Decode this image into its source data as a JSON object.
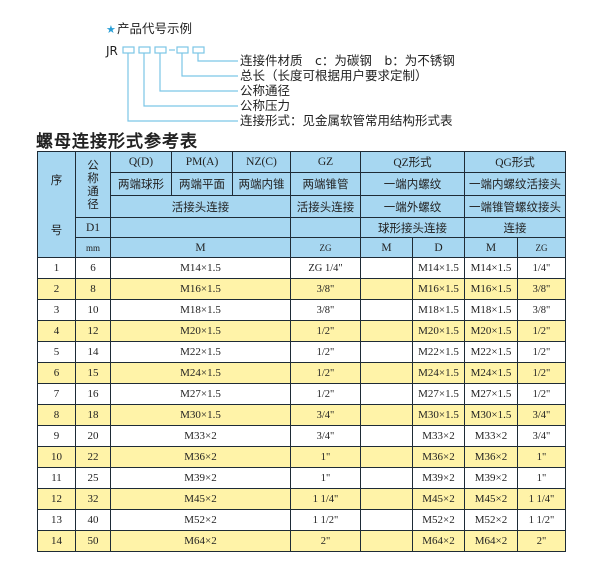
{
  "diagram": {
    "star_color": "#2a9fd6",
    "heading": "产品代号示例",
    "code_prefix": "JR",
    "labels": [
      "连接件材质　c：为碳钢　b：为不锈钢",
      "总长（长度可根据用户要求定制）",
      "公称通径",
      "公称压力",
      "连接形式：见金属软管常用结构形式表"
    ]
  },
  "table_title": "螺母连接形式参考表",
  "colors": {
    "header_bg": "#a7d7f1",
    "row_alt": "#fff3a8",
    "box_line": "#7cc6e6"
  },
  "header": {
    "seq_top": "序",
    "seq_bottom": "号",
    "nominal_dia": "公称通径",
    "row1": [
      "Q(D)",
      "PM(A)",
      "NZ(C)",
      "GZ",
      "QZ形式",
      "QG形式"
    ],
    "row2": [
      "两端球形",
      "两端平面",
      "两端内锥",
      "两端锥管",
      "一端内螺纹",
      "一端内螺纹活接头"
    ],
    "row3": [
      "活接头连接",
      "活接头连接",
      "一端外螺纹",
      "一端锥管螺纹接头"
    ],
    "row4": [
      "D1",
      "",
      "",
      "球形接头连接",
      "连接"
    ],
    "row5": [
      "mm",
      "M",
      "ZG",
      "M",
      "D",
      "M",
      "ZG"
    ]
  },
  "rows": [
    {
      "no": "1",
      "d1": "6",
      "m": "M14×1.5",
      "gz": "ZG 1/4\"",
      "qz_m": "",
      "qz_d": "M14×1.5",
      "qg_m": "M14×1.5",
      "qg_zg": "1/4\""
    },
    {
      "no": "2",
      "d1": "8",
      "m": "M16×1.5",
      "gz": "3/8\"",
      "qz_m": "",
      "qz_d": "M16×1.5",
      "qg_m": "M16×1.5",
      "qg_zg": "3/8\""
    },
    {
      "no": "3",
      "d1": "10",
      "m": "M18×1.5",
      "gz": "3/8\"",
      "qz_m": "",
      "qz_d": "M18×1.5",
      "qg_m": "M18×1.5",
      "qg_zg": "3/8\""
    },
    {
      "no": "4",
      "d1": "12",
      "m": "M20×1.5",
      "gz": "1/2\"",
      "qz_m": "",
      "qz_d": "M20×1.5",
      "qg_m": "M20×1.5",
      "qg_zg": "1/2\""
    },
    {
      "no": "5",
      "d1": "14",
      "m": "M22×1.5",
      "gz": "1/2\"",
      "qz_m": "",
      "qz_d": "M22×1.5",
      "qg_m": "M22×1.5",
      "qg_zg": "1/2\""
    },
    {
      "no": "6",
      "d1": "15",
      "m": "M24×1.5",
      "gz": "1/2\"",
      "qz_m": "",
      "qz_d": "M24×1.5",
      "qg_m": "M24×1.5",
      "qg_zg": "1/2\""
    },
    {
      "no": "7",
      "d1": "16",
      "m": "M27×1.5",
      "gz": "1/2\"",
      "qz_m": "",
      "qz_d": "M27×1.5",
      "qg_m": "M27×1.5",
      "qg_zg": "1/2\""
    },
    {
      "no": "8",
      "d1": "18",
      "m": "M30×1.5",
      "gz": "3/4\"",
      "qz_m": "",
      "qz_d": "M30×1.5",
      "qg_m": "M30×1.5",
      "qg_zg": "3/4\""
    },
    {
      "no": "9",
      "d1": "20",
      "m": "M33×2",
      "gz": "3/4\"",
      "qz_m": "",
      "qz_d": "M33×2",
      "qg_m": "M33×2",
      "qg_zg": "3/4\""
    },
    {
      "no": "10",
      "d1": "22",
      "m": "M36×2",
      "gz": "1\"",
      "qz_m": "",
      "qz_d": "M36×2",
      "qg_m": "M36×2",
      "qg_zg": "1\""
    },
    {
      "no": "11",
      "d1": "25",
      "m": "M39×2",
      "gz": "1\"",
      "qz_m": "",
      "qz_d": "M39×2",
      "qg_m": "M39×2",
      "qg_zg": "1\""
    },
    {
      "no": "12",
      "d1": "32",
      "m": "M45×2",
      "gz": "1 1/4\"",
      "qz_m": "",
      "qz_d": "M45×2",
      "qg_m": "M45×2",
      "qg_zg": "1 1/4\""
    },
    {
      "no": "13",
      "d1": "40",
      "m": "M52×2",
      "gz": "1 1/2\"",
      "qz_m": "",
      "qz_d": "M52×2",
      "qg_m": "M52×2",
      "qg_zg": "1 1/2\""
    },
    {
      "no": "14",
      "d1": "50",
      "m": "M64×2",
      "gz": "2\"",
      "qz_m": "",
      "qz_d": "M64×2",
      "qg_m": "M64×2",
      "qg_zg": "2\""
    }
  ]
}
